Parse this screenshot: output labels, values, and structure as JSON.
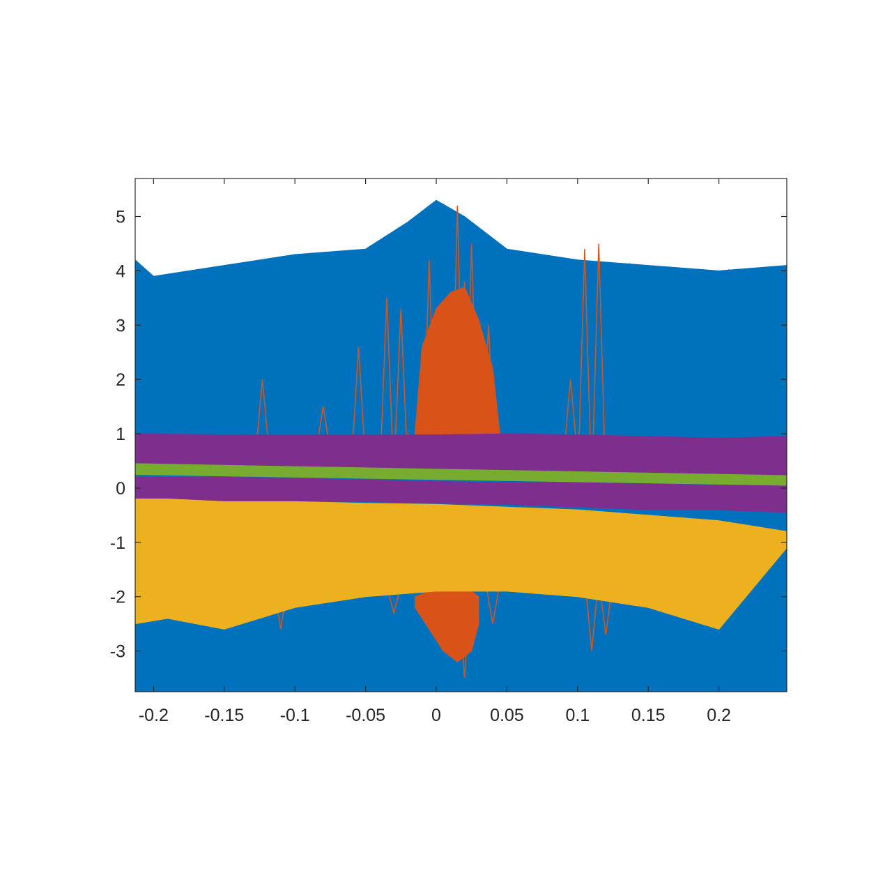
{
  "chart_data": {
    "type": "line",
    "title": "",
    "xlabel": "",
    "ylabel": "",
    "xlim": [
      -0.213,
      0.248
    ],
    "ylim": [
      -3.75,
      5.7
    ],
    "x_ticks": [
      -0.2,
      -0.15,
      -0.1,
      -0.05,
      0,
      0.05,
      0.1,
      0.15,
      0.2
    ],
    "x_tick_labels": [
      "-0.2",
      "-0.15",
      "-0.1",
      "-0.05",
      "0",
      "0.05",
      "0.1",
      "0.15",
      "0.2"
    ],
    "y_ticks": [
      5,
      4,
      3,
      2,
      1,
      0,
      -1,
      -2,
      -3
    ],
    "y_tick_labels": [
      "5",
      "4",
      "3",
      "2",
      "1",
      "0",
      "-1",
      "-2",
      "-3"
    ],
    "grid": false,
    "legend": "none",
    "colors": {
      "blue": "#0072BD",
      "orange": "#D95319",
      "yellow": "#EDB120",
      "purple": "#7E2F8E",
      "green": "#77AC30",
      "axes": "#262626"
    },
    "series": [
      {
        "color": "blue",
        "style": "dense-band",
        "x": [
          -0.213,
          -0.2,
          -0.15,
          -0.1,
          -0.05,
          -0.02,
          0,
          0.02,
          0.05,
          0.1,
          0.15,
          0.2,
          0.248
        ],
        "upper": [
          4.2,
          3.9,
          4.1,
          4.3,
          4.4,
          4.9,
          5.3,
          5.0,
          4.4,
          4.2,
          4.1,
          4.0,
          4.1
        ],
        "lower": [
          -3.75,
          -3.75,
          -3.75,
          -3.75,
          -3.75,
          -3.75,
          -3.75,
          -3.75,
          -3.75,
          -3.75,
          -3.75,
          -3.75,
          -3.75
        ]
      },
      {
        "color": "orange",
        "style": "dense-band",
        "x": [
          -0.015,
          -0.01,
          0,
          0.01,
          0.02,
          0.03,
          0.04,
          0.045
        ],
        "upper": [
          1.0,
          2.6,
          3.3,
          3.6,
          3.7,
          3.1,
          2.2,
          1.0
        ],
        "lower": [
          0.9,
          0.9,
          0.9,
          0.9,
          0.9,
          0.9,
          0.9,
          0.9
        ]
      },
      {
        "color": "orange",
        "style": "dense-band",
        "x": [
          -0.015,
          -0.005,
          0.005,
          0.015,
          0.025,
          0.03
        ],
        "upper": [
          -2.0,
          -1.9,
          -1.9,
          -1.9,
          -1.9,
          -2.0
        ],
        "lower": [
          -2.2,
          -2.6,
          -3.0,
          -3.2,
          -3.0,
          -2.5
        ]
      },
      {
        "color": "orange",
        "style": "spikes",
        "x": [
          -0.123,
          -0.116,
          -0.08,
          -0.075,
          -0.055,
          -0.05,
          -0.035,
          -0.025,
          -0.02,
          -0.005,
          0.015,
          0.02,
          0.025,
          0.03,
          0.037,
          0.095,
          0.105,
          0.115,
          0.12
        ],
        "y": [
          2.0,
          0.8,
          1.5,
          0.8,
          2.6,
          0.8,
          3.5,
          3.3,
          1.0,
          4.2,
          5.2,
          3.8,
          4.5,
          2.5,
          3.0,
          2.0,
          4.4,
          4.5,
          0.9
        ]
      },
      {
        "color": "orange",
        "style": "spikes",
        "x": [
          -0.11,
          -0.04,
          -0.03,
          0.04,
          0.02,
          0.11,
          0.12
        ],
        "y": [
          -2.6,
          -1.9,
          -2.3,
          -2.5,
          -3.5,
          -3.0,
          -2.7
        ]
      },
      {
        "color": "purple",
        "style": "dense-band",
        "x": [
          -0.213,
          -0.15,
          -0.1,
          -0.05,
          0,
          0.05,
          0.1,
          0.15,
          0.2,
          0.248
        ],
        "upper": [
          1.0,
          0.98,
          0.98,
          0.98,
          0.98,
          1.0,
          0.98,
          0.95,
          0.92,
          0.95
        ],
        "lower": [
          0.3,
          0.3,
          0.3,
          0.3,
          0.28,
          0.25,
          0.25,
          0.22,
          0.2,
          0.2
        ]
      },
      {
        "color": "purple",
        "style": "dense-band",
        "x": [
          -0.213,
          -0.15,
          -0.1,
          -0.05,
          0,
          0.05,
          0.1,
          0.15,
          0.2,
          0.248
        ],
        "upper": [
          0.2,
          0.2,
          0.18,
          0.15,
          0.12,
          0.1,
          0.1,
          0.08,
          0.05,
          0.05
        ],
        "lower": [
          -0.25,
          -0.25,
          -0.25,
          -0.25,
          -0.28,
          -0.3,
          -0.35,
          -0.4,
          -0.4,
          -0.45
        ]
      },
      {
        "color": "green",
        "style": "dense-band",
        "x": [
          -0.213,
          0.248
        ],
        "upper": [
          0.45,
          0.23
        ],
        "lower": [
          0.25,
          0.05
        ]
      },
      {
        "color": "yellow",
        "style": "dense-band",
        "x": [
          -0.213,
          -0.19,
          -0.15,
          -0.1,
          -0.05,
          0,
          0.05,
          0.1,
          0.15,
          0.2,
          0.248
        ],
        "upper": [
          -0.2,
          -0.2,
          -0.25,
          -0.25,
          -0.28,
          -0.3,
          -0.35,
          -0.4,
          -0.5,
          -0.6,
          -0.8
        ],
        "lower": [
          -2.5,
          -2.4,
          -2.6,
          -2.2,
          -2.0,
          -1.9,
          -1.9,
          -2.0,
          -2.2,
          -2.6,
          -1.1
        ]
      }
    ]
  }
}
